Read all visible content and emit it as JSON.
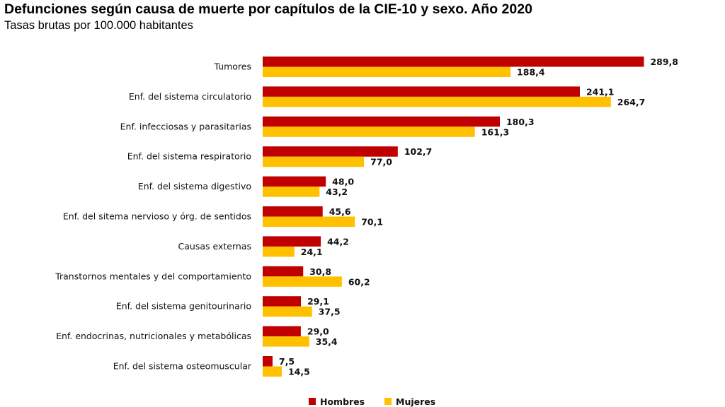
{
  "colors": {
    "hombres": "#c00000",
    "mujeres": "#ffc000"
  },
  "chart_data": {
    "type": "bar",
    "orientation": "horizontal",
    "title": "Defunciones según causa de muerte por capítulos de la CIE-10 y sexo. Año 2020",
    "subtitle": "Tasas brutas por 100.000 habitantes",
    "xlabel": "",
    "ylabel": "",
    "xlim": [
      0,
      300
    ],
    "grid": false,
    "legend_position": "bottom",
    "categories": [
      "Tumores",
      "Enf. del sistema circulatorio",
      "Enf. infecciosas y parasitarias",
      "Enf. del sistema respiratorio",
      "Enf. del sistema digestivo",
      "Enf. del sitema nervioso y órg. de sentidos",
      "Causas externas",
      "Transtornos mentales y del comportamiento",
      "Enf. del sistema genitourinario",
      "Enf. endocrinas, nutricionales y metabólicas",
      "Enf. del sistema osteomuscular"
    ],
    "series": [
      {
        "name": "Hombres",
        "values": [
          289.8,
          241.1,
          180.3,
          102.7,
          48.0,
          45.6,
          44.2,
          30.8,
          29.1,
          29.0,
          7.5
        ],
        "labels": [
          "289,8",
          "241,1",
          "180,3",
          "102,7",
          "48,0",
          "45,6",
          "44,2",
          "30,8",
          "29,1",
          "29,0",
          "7,5"
        ]
      },
      {
        "name": "Mujeres",
        "values": [
          188.4,
          264.7,
          161.3,
          77.0,
          43.2,
          70.1,
          24.1,
          60.2,
          37.5,
          35.4,
          14.5
        ],
        "labels": [
          "188,4",
          "264,7",
          "161,3",
          "77,0",
          "43,2",
          "70,1",
          "24,1",
          "60,2",
          "37,5",
          "35,4",
          "14,5"
        ]
      }
    ]
  }
}
